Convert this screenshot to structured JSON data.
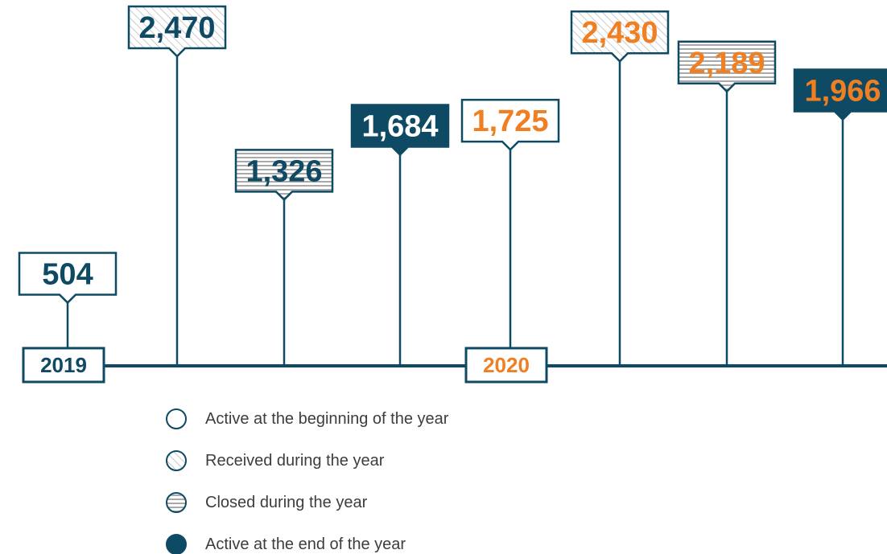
{
  "chart_data": {
    "type": "lollipop",
    "categories": [
      "2019",
      "2020"
    ],
    "category_colors": [
      "#0e4a63",
      "#f07f22"
    ],
    "solid_label_colors": [
      "#ffffff",
      "#f07f22"
    ],
    "line_color": "#0e4a63",
    "series": [
      {
        "name": "Active at the beginning of the year",
        "fill": "none",
        "values": [
          504,
          1725
        ],
        "value_labels": [
          "504",
          "1,725"
        ]
      },
      {
        "name": "Received during the year",
        "fill": "hatch",
        "values": [
          2470,
          2430
        ],
        "value_labels": [
          "2,470",
          "2,430"
        ]
      },
      {
        "name": "Closed during the year",
        "fill": "stripes",
        "values": [
          1326,
          2189
        ],
        "value_labels": [
          "1,326",
          "2,189"
        ]
      },
      {
        "name": "Active at the end of the year",
        "fill": "solid",
        "values": [
          1684,
          1966
        ],
        "value_labels": [
          "1,684",
          "1,966"
        ]
      }
    ]
  }
}
